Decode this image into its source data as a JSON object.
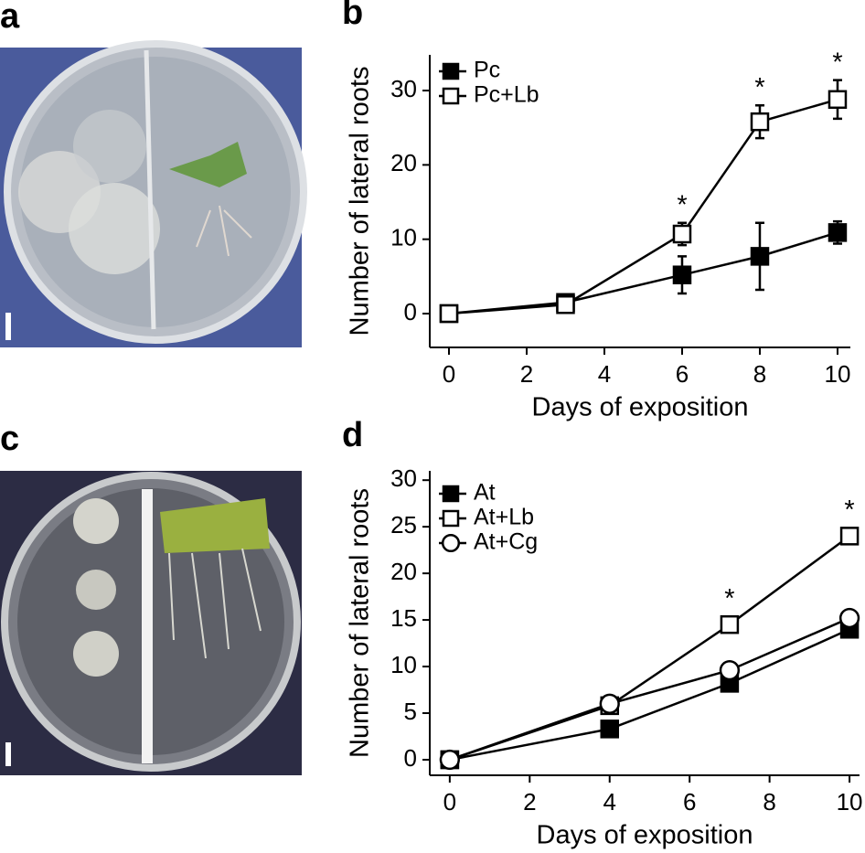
{
  "panel_labels": [
    "a",
    "b",
    "c",
    "d"
  ],
  "chart_data": [
    {
      "type": "line",
      "xlabel": "Days of exposition",
      "ylabel": "Number of lateral roots",
      "xlim": [
        -0.494,
        10.33
      ],
      "ylim": [
        -4.55,
        34.8
      ],
      "xticks": [
        0,
        2,
        4,
        6,
        8,
        10
      ],
      "yticks": [
        0,
        10,
        20,
        30
      ],
      "series": [
        {
          "name": "Pc",
          "color": "#000",
          "marker": "filled-square",
          "x": [
            0,
            3,
            6,
            8,
            10
          ],
          "values": [
            0,
            1.5,
            5.2,
            7.7,
            10.9
          ],
          "errors": [
            0,
            0.5,
            2.5,
            4.5,
            1.5
          ],
          "markers": [
            null,
            null,
            null,
            null,
            null
          ]
        },
        {
          "name": "Pc+Lb",
          "color": "#000",
          "marker": "open-square",
          "x": [
            0,
            3,
            6,
            8,
            10
          ],
          "values": [
            0,
            1.2,
            10.7,
            25.8,
            28.8
          ],
          "errors": [
            0,
            0.8,
            1.5,
            2.2,
            2.6
          ],
          "markers": [
            null,
            null,
            "*",
            "*",
            "*"
          ]
        }
      ]
    },
    {
      "type": "line",
      "xlabel": "Days of exposition",
      "ylabel": "Number of lateral roots",
      "xlim": [
        -0.5,
        10.25
      ],
      "ylim": [
        -1.67,
        31
      ],
      "xticks": [
        0,
        2,
        4,
        6,
        8,
        10
      ],
      "yticks": [
        0,
        5,
        10,
        15,
        20,
        25,
        30
      ],
      "series": [
        {
          "name": "At",
          "color": "#000",
          "marker": "filled-square",
          "x": [
            0,
            4,
            7,
            10
          ],
          "values": [
            0,
            3.3,
            8.2,
            14
          ],
          "markers": [
            null,
            null,
            null,
            null
          ]
        },
        {
          "name": "At+Lb",
          "color": "#000",
          "marker": "open-square",
          "x": [
            0,
            4,
            7,
            10
          ],
          "values": [
            0,
            5.8,
            14.5,
            24
          ],
          "markers": [
            null,
            null,
            "*",
            "*"
          ]
        },
        {
          "name": "At+Cg",
          "color": "#000",
          "marker": "open-circle",
          "x": [
            0,
            4,
            7,
            10
          ],
          "values": [
            0,
            6,
            9.6,
            15.2
          ],
          "markers": [
            null,
            null,
            null,
            null
          ]
        }
      ]
    }
  ]
}
